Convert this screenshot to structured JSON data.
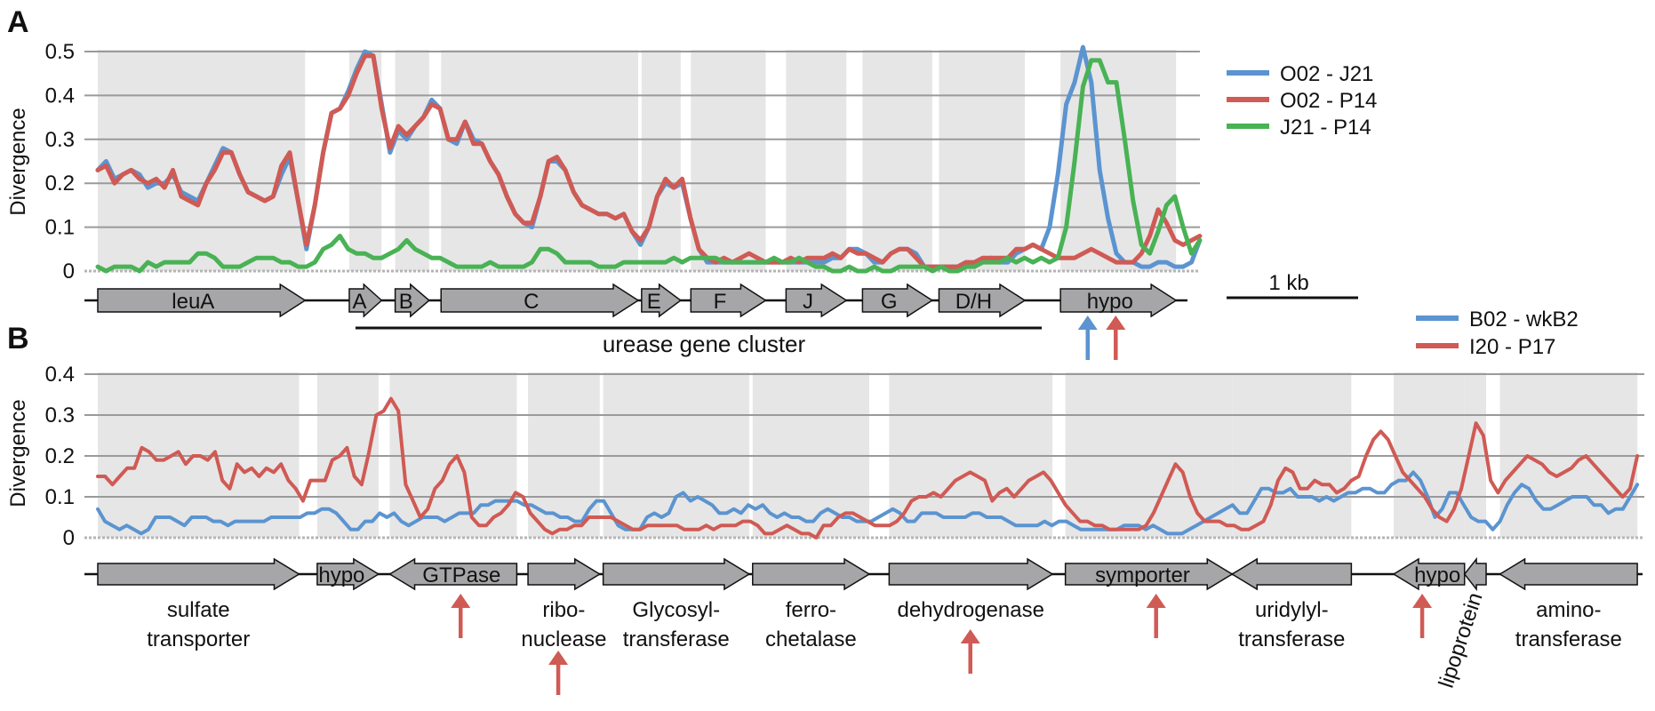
{
  "panels": [
    {
      "label": "A"
    },
    {
      "label": "B"
    }
  ],
  "scale_bar_label": "1 kb",
  "cluster_label": "urease gene cluster",
  "colors": {
    "blue": "#5b94d0",
    "red": "#d05a54",
    "green": "#49b255",
    "gene": "#a6a6a8",
    "shade": "#e6e6e6",
    "grid": "#9a9a9a"
  },
  "chart_data": [
    {
      "type": "line",
      "panel": "A",
      "ylabel": "Divergence",
      "ylim": [
        0,
        0.5
      ],
      "yticks": [
        "0",
        "0.1",
        "0.2",
        "0.3",
        "0.4",
        "0.5"
      ],
      "grid": true,
      "legend_position": "right",
      "series": [
        {
          "name": "O02 - J21",
          "color": "#5b94d0",
          "values": [
            0.23,
            0.25,
            0.21,
            0.22,
            0.23,
            0.22,
            0.19,
            0.2,
            0.2,
            0.22,
            0.18,
            0.17,
            0.16,
            0.2,
            0.24,
            0.28,
            0.27,
            0.22,
            0.18,
            0.17,
            0.16,
            0.17,
            0.22,
            0.26,
            0.16,
            0.05,
            0.15,
            0.27,
            0.36,
            0.37,
            0.41,
            0.46,
            0.5,
            0.49,
            0.38,
            0.27,
            0.32,
            0.3,
            0.33,
            0.35,
            0.39,
            0.37,
            0.3,
            0.29,
            0.34,
            0.3,
            0.29,
            0.25,
            0.22,
            0.17,
            0.13,
            0.11,
            0.1,
            0.17,
            0.25,
            0.25,
            0.23,
            0.18,
            0.15,
            0.14,
            0.13,
            0.13,
            0.12,
            0.13,
            0.09,
            0.06,
            0.1,
            0.17,
            0.2,
            0.19,
            0.2,
            0.12,
            0.05,
            0.02,
            0.02,
            0.02,
            0.02,
            0.02,
            0.02,
            0.02,
            0.02,
            0.02,
            0.02,
            0.02,
            0.02,
            0.02,
            0.02,
            0.02,
            0.03,
            0.03,
            0.05,
            0.05,
            0.04,
            0.02,
            0.02,
            0.04,
            0.05,
            0.05,
            0.04,
            0.01,
            0.01,
            0.01,
            0.01,
            0.01,
            0.02,
            0.01,
            0.02,
            0.03,
            0.02,
            0.02,
            0.04,
            0.05,
            0.06,
            0.05,
            0.1,
            0.22,
            0.38,
            0.43,
            0.51,
            0.43,
            0.23,
            0.12,
            0.04,
            0.02,
            0.02,
            0.01,
            0.01,
            0.02,
            0.02,
            0.01,
            0.01,
            0.02,
            0.07
          ]
        },
        {
          "name": "O02 - P14",
          "color": "#d05a54",
          "values": [
            0.23,
            0.24,
            0.2,
            0.22,
            0.23,
            0.21,
            0.2,
            0.21,
            0.19,
            0.23,
            0.17,
            0.16,
            0.15,
            0.2,
            0.23,
            0.27,
            0.27,
            0.22,
            0.18,
            0.17,
            0.16,
            0.17,
            0.24,
            0.27,
            0.16,
            0.06,
            0.15,
            0.27,
            0.36,
            0.37,
            0.4,
            0.45,
            0.49,
            0.49,
            0.37,
            0.28,
            0.33,
            0.31,
            0.33,
            0.35,
            0.38,
            0.37,
            0.3,
            0.3,
            0.34,
            0.29,
            0.29,
            0.25,
            0.22,
            0.17,
            0.13,
            0.11,
            0.11,
            0.17,
            0.25,
            0.26,
            0.23,
            0.18,
            0.15,
            0.14,
            0.13,
            0.13,
            0.12,
            0.13,
            0.09,
            0.07,
            0.1,
            0.17,
            0.21,
            0.19,
            0.21,
            0.12,
            0.05,
            0.03,
            0.02,
            0.03,
            0.02,
            0.03,
            0.04,
            0.03,
            0.02,
            0.02,
            0.02,
            0.03,
            0.02,
            0.03,
            0.03,
            0.03,
            0.04,
            0.03,
            0.05,
            0.04,
            0.04,
            0.03,
            0.02,
            0.04,
            0.05,
            0.05,
            0.03,
            0.01,
            0.01,
            0.01,
            0.01,
            0.01,
            0.02,
            0.02,
            0.03,
            0.03,
            0.03,
            0.03,
            0.05,
            0.05,
            0.06,
            0.05,
            0.04,
            0.03,
            0.03,
            0.03,
            0.04,
            0.05,
            0.04,
            0.03,
            0.02,
            0.02,
            0.02,
            0.04,
            0.08,
            0.14,
            0.11,
            0.07,
            0.06,
            0.07,
            0.08
          ]
        },
        {
          "name": "J21 - P14",
          "color": "#49b255",
          "values": [
            0.01,
            0.0,
            0.01,
            0.01,
            0.01,
            0.0,
            0.02,
            0.01,
            0.02,
            0.02,
            0.02,
            0.02,
            0.04,
            0.04,
            0.03,
            0.01,
            0.01,
            0.01,
            0.02,
            0.03,
            0.03,
            0.03,
            0.02,
            0.02,
            0.01,
            0.01,
            0.02,
            0.05,
            0.06,
            0.08,
            0.05,
            0.04,
            0.04,
            0.03,
            0.03,
            0.04,
            0.05,
            0.07,
            0.05,
            0.04,
            0.03,
            0.03,
            0.02,
            0.01,
            0.01,
            0.01,
            0.01,
            0.02,
            0.01,
            0.01,
            0.01,
            0.01,
            0.02,
            0.05,
            0.05,
            0.04,
            0.02,
            0.02,
            0.02,
            0.02,
            0.01,
            0.01,
            0.01,
            0.02,
            0.02,
            0.02,
            0.02,
            0.02,
            0.02,
            0.03,
            0.02,
            0.03,
            0.03,
            0.03,
            0.03,
            0.02,
            0.02,
            0.02,
            0.02,
            0.02,
            0.02,
            0.03,
            0.02,
            0.02,
            0.03,
            0.02,
            0.01,
            0.01,
            0.0,
            0.0,
            0.01,
            0.0,
            0.0,
            0.01,
            0.0,
            0.0,
            0.01,
            0.01,
            0.01,
            0.01,
            0.0,
            0.01,
            0.0,
            0.0,
            0.01,
            0.01,
            0.02,
            0.02,
            0.02,
            0.03,
            0.02,
            0.03,
            0.02,
            0.03,
            0.02,
            0.03,
            0.1,
            0.25,
            0.42,
            0.48,
            0.48,
            0.43,
            0.43,
            0.3,
            0.16,
            0.06,
            0.04,
            0.09,
            0.15,
            0.17,
            0.1,
            0.04,
            0.07
          ]
        }
      ],
      "genes": [
        {
          "label": "leuA",
          "start": 0,
          "end": 2.44,
          "dir": "right"
        },
        {
          "label": "A",
          "start": 2.96,
          "end": 3.34,
          "dir": "right"
        },
        {
          "label": "B",
          "start": 3.5,
          "end": 3.9,
          "dir": "right"
        },
        {
          "label": "C",
          "start": 4.04,
          "end": 6.36,
          "dir": "right"
        },
        {
          "label": "E",
          "start": 6.4,
          "end": 6.86,
          "dir": "right"
        },
        {
          "label": "F",
          "start": 6.98,
          "end": 7.86,
          "dir": "right"
        },
        {
          "label": "J",
          "start": 8.1,
          "end": 8.81,
          "dir": "right"
        },
        {
          "label": "G",
          "start": 9.0,
          "end": 9.82,
          "dir": "right"
        },
        {
          "label": "D/H",
          "start": 9.9,
          "end": 10.91,
          "dir": "right"
        },
        {
          "label": "hypo",
          "start": 11.33,
          "end": 12.69,
          "dir": "right"
        }
      ],
      "arrows": [
        {
          "x": 11.65,
          "color": "#5b94d0"
        },
        {
          "x": 11.98,
          "color": "#d05a54"
        }
      ]
    },
    {
      "type": "line",
      "panel": "B",
      "ylabel": "Divergence",
      "ylim": [
        0,
        0.4
      ],
      "yticks": [
        "0",
        "0.1",
        "0.2",
        "0.3",
        "0.4"
      ],
      "grid": true,
      "legend_position": "top-right",
      "series": [
        {
          "name": "B02 - wkB2",
          "color": "#5b94d0",
          "values": [
            0.07,
            0.04,
            0.03,
            0.02,
            0.03,
            0.02,
            0.01,
            0.02,
            0.05,
            0.05,
            0.05,
            0.04,
            0.03,
            0.05,
            0.05,
            0.05,
            0.04,
            0.04,
            0.03,
            0.04,
            0.04,
            0.04,
            0.04,
            0.04,
            0.05,
            0.05,
            0.05,
            0.05,
            0.05,
            0.06,
            0.06,
            0.07,
            0.07,
            0.06,
            0.04,
            0.02,
            0.02,
            0.04,
            0.04,
            0.06,
            0.05,
            0.06,
            0.04,
            0.03,
            0.04,
            0.05,
            0.05,
            0.05,
            0.04,
            0.05,
            0.06,
            0.06,
            0.06,
            0.08,
            0.08,
            0.09,
            0.09,
            0.09,
            0.09,
            0.08,
            0.08,
            0.07,
            0.06,
            0.06,
            0.05,
            0.05,
            0.04,
            0.04,
            0.07,
            0.09,
            0.09,
            0.06,
            0.03,
            0.02,
            0.02,
            0.02,
            0.05,
            0.06,
            0.05,
            0.06,
            0.1,
            0.11,
            0.09,
            0.1,
            0.09,
            0.08,
            0.06,
            0.06,
            0.07,
            0.06,
            0.08,
            0.07,
            0.08,
            0.06,
            0.05,
            0.06,
            0.05,
            0.05,
            0.04,
            0.04,
            0.06,
            0.07,
            0.06,
            0.05,
            0.05,
            0.04,
            0.04,
            0.04,
            0.05,
            0.06,
            0.07,
            0.06,
            0.04,
            0.04,
            0.06,
            0.06,
            0.06,
            0.05,
            0.05,
            0.05,
            0.05,
            0.06,
            0.06,
            0.05,
            0.05,
            0.05,
            0.04,
            0.03,
            0.03,
            0.03,
            0.03,
            0.04,
            0.03,
            0.04,
            0.04,
            0.03,
            0.02,
            0.02,
            0.02,
            0.02,
            0.02,
            0.02,
            0.03,
            0.03,
            0.03,
            0.02,
            0.03,
            0.02,
            0.01,
            0.01,
            0.01,
            0.02,
            0.03,
            0.04,
            0.05,
            0.06,
            0.07,
            0.08,
            0.06,
            0.06,
            0.09,
            0.12,
            0.12,
            0.11,
            0.11,
            0.12,
            0.1,
            0.1,
            0.1,
            0.09,
            0.1,
            0.09,
            0.1,
            0.11,
            0.11,
            0.12,
            0.12,
            0.11,
            0.11,
            0.13,
            0.14,
            0.14,
            0.16,
            0.14,
            0.1,
            0.05,
            0.07,
            0.11,
            0.11,
            0.08,
            0.05,
            0.04,
            0.04,
            0.02,
            0.04,
            0.08,
            0.11,
            0.13,
            0.12,
            0.09,
            0.07,
            0.07,
            0.08,
            0.09,
            0.1,
            0.1,
            0.1,
            0.08,
            0.08,
            0.06,
            0.07,
            0.07,
            0.1,
            0.13
          ]
        },
        {
          "name": "I20 - P17",
          "color": "#d05a54",
          "values": [
            0.15,
            0.15,
            0.13,
            0.15,
            0.17,
            0.17,
            0.22,
            0.21,
            0.19,
            0.19,
            0.2,
            0.21,
            0.18,
            0.2,
            0.2,
            0.19,
            0.21,
            0.14,
            0.12,
            0.18,
            0.16,
            0.17,
            0.15,
            0.17,
            0.16,
            0.18,
            0.14,
            0.12,
            0.09,
            0.14,
            0.14,
            0.14,
            0.19,
            0.2,
            0.22,
            0.15,
            0.13,
            0.21,
            0.3,
            0.31,
            0.34,
            0.31,
            0.13,
            0.09,
            0.05,
            0.07,
            0.12,
            0.14,
            0.18,
            0.2,
            0.16,
            0.05,
            0.03,
            0.03,
            0.05,
            0.06,
            0.08,
            0.11,
            0.1,
            0.06,
            0.04,
            0.02,
            0.01,
            0.02,
            0.02,
            0.03,
            0.03,
            0.05,
            0.05,
            0.05,
            0.05,
            0.04,
            0.03,
            0.02,
            0.02,
            0.03,
            0.03,
            0.03,
            0.03,
            0.03,
            0.02,
            0.02,
            0.02,
            0.03,
            0.02,
            0.03,
            0.03,
            0.03,
            0.04,
            0.04,
            0.03,
            0.01,
            0.01,
            0.02,
            0.03,
            0.02,
            0.01,
            0.01,
            0.0,
            0.03,
            0.03,
            0.05,
            0.06,
            0.06,
            0.05,
            0.04,
            0.03,
            0.03,
            0.03,
            0.04,
            0.06,
            0.09,
            0.1,
            0.1,
            0.11,
            0.1,
            0.12,
            0.14,
            0.15,
            0.16,
            0.15,
            0.14,
            0.09,
            0.11,
            0.12,
            0.1,
            0.12,
            0.14,
            0.15,
            0.16,
            0.14,
            0.11,
            0.08,
            0.06,
            0.04,
            0.04,
            0.03,
            0.03,
            0.02,
            0.02,
            0.02,
            0.02,
            0.02,
            0.03,
            0.06,
            0.1,
            0.14,
            0.18,
            0.16,
            0.1,
            0.06,
            0.04,
            0.04,
            0.04,
            0.03,
            0.03,
            0.02,
            0.02,
            0.03,
            0.04,
            0.08,
            0.14,
            0.17,
            0.16,
            0.12,
            0.12,
            0.14,
            0.13,
            0.13,
            0.11,
            0.12,
            0.14,
            0.15,
            0.2,
            0.24,
            0.26,
            0.24,
            0.2,
            0.16,
            0.14,
            0.12,
            0.1,
            0.07,
            0.05,
            0.04,
            0.07,
            0.12,
            0.2,
            0.28,
            0.25,
            0.14,
            0.11,
            0.14,
            0.16,
            0.18,
            0.2,
            0.19,
            0.18,
            0.16,
            0.15,
            0.16,
            0.17,
            0.19,
            0.2,
            0.18,
            0.16,
            0.14,
            0.12,
            0.1,
            0.12,
            0.2
          ]
        }
      ],
      "genes": [
        {
          "label": "sulfate\ntransporter",
          "start": 0,
          "end": 2.33,
          "dir": "right"
        },
        {
          "label": "hypo",
          "start": 2.54,
          "end": 3.25,
          "dir": "right"
        },
        {
          "label": "GTPase",
          "start": 3.38,
          "end": 4.85,
          "dir": "left"
        },
        {
          "label": "ribo-\nnuclease",
          "start": 4.98,
          "end": 5.81,
          "dir": "right"
        },
        {
          "label": "Glycosyl-\ntransferase",
          "start": 5.85,
          "end": 7.54,
          "dir": "right"
        },
        {
          "label": "ferro-\nchetalase",
          "start": 7.58,
          "end": 8.93,
          "dir": "right"
        },
        {
          "label": "dehydrogenase",
          "start": 9.16,
          "end": 11.05,
          "dir": "right"
        },
        {
          "label": "symporter",
          "start": 11.2,
          "end": 13.13,
          "dir": "right"
        },
        {
          "label": "uridylyl-\ntransferase",
          "start": 13.13,
          "end": 14.51,
          "dir": "left"
        },
        {
          "label": "hypo",
          "start": 15.0,
          "end": 15.82,
          "dir": "left"
        },
        {
          "label": "lipoprotein",
          "start": 15.82,
          "end": 16.07,
          "dir": "left"
        },
        {
          "label": "amino-\ntransferase",
          "start": 16.23,
          "end": 17.82,
          "dir": "left"
        }
      ],
      "arrows": [
        {
          "x": 4.2,
          "color": "#d05a54"
        },
        {
          "x": 5.33,
          "color": "#d05a54"
        },
        {
          "x": 10.1,
          "color": "#d05a54"
        },
        {
          "x": 12.25,
          "color": "#d05a54"
        },
        {
          "x": 15.33,
          "color": "#d05a54"
        }
      ]
    }
  ]
}
